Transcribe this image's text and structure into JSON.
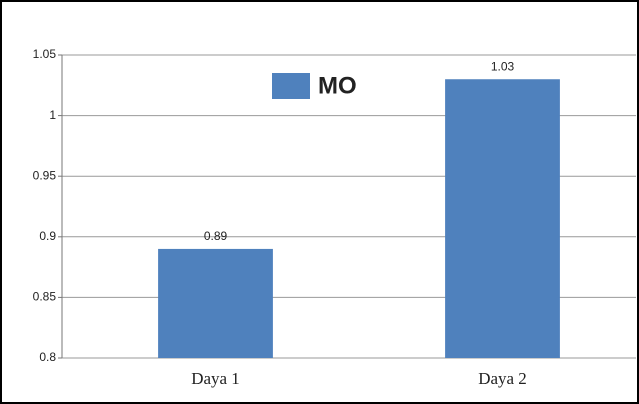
{
  "chart_data": {
    "type": "bar",
    "categories": [
      "Daya 1",
      "Daya 2"
    ],
    "series": [
      {
        "name": "MO",
        "color": "#4f81bd",
        "values": [
          0.89,
          1.03
        ]
      }
    ],
    "ylim": [
      0.8,
      1.05
    ],
    "yticks": [
      0.8,
      0.85,
      0.9,
      0.95,
      1,
      1.05
    ],
    "grid": true,
    "legend": "top"
  }
}
